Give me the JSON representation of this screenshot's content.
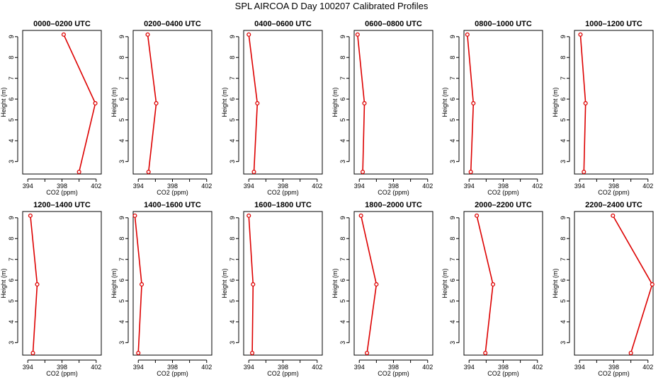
{
  "figure": {
    "title": "SPL AIRCOA D  Day 100207  Calibrated Profiles"
  },
  "colors": {
    "profile": "#dd0000",
    "axis": "#000000"
  },
  "chart_data": [
    {
      "type": "line",
      "title": "0000–0200 UTC",
      "xlabel": "CO2 (ppm)",
      "ylabel": "Height (m)",
      "xlim": [
        393.4,
        402.6
      ],
      "ylim": [
        2.4,
        9.3
      ],
      "xticks": [
        394,
        398,
        402
      ],
      "yticks": [
        3,
        4,
        5,
        6,
        7,
        8,
        9
      ],
      "series": [
        {
          "name": "profile",
          "x": [
            400.0,
            401.9,
            398.2
          ],
          "y": [
            2.5,
            5.8,
            9.1
          ]
        }
      ]
    },
    {
      "type": "line",
      "title": "0200–0400 UTC",
      "xlabel": "CO2 (ppm)",
      "ylabel": "Height (m)",
      "xlim": [
        393.4,
        402.6
      ],
      "ylim": [
        2.4,
        9.3
      ],
      "xticks": [
        394,
        398,
        402
      ],
      "yticks": [
        3,
        4,
        5,
        6,
        7,
        8,
        9
      ],
      "series": [
        {
          "name": "profile",
          "x": [
            395.2,
            396.1,
            395.1
          ],
          "y": [
            2.5,
            5.8,
            9.1
          ]
        }
      ]
    },
    {
      "type": "line",
      "title": "0400–0600 UTC",
      "xlabel": "CO2 (ppm)",
      "ylabel": "Height (m)",
      "xlim": [
        393.4,
        402.6
      ],
      "ylim": [
        2.4,
        9.3
      ],
      "xticks": [
        394,
        398,
        402
      ],
      "yticks": [
        3,
        4,
        5,
        6,
        7,
        8,
        9
      ],
      "series": [
        {
          "name": "profile",
          "x": [
            394.6,
            395.0,
            394.0
          ],
          "y": [
            2.5,
            5.8,
            9.1
          ]
        }
      ]
    },
    {
      "type": "line",
      "title": "0600–0800 UTC",
      "xlabel": "CO2 (ppm)",
      "ylabel": "Height (m)",
      "xlim": [
        393.4,
        402.6
      ],
      "ylim": [
        2.4,
        9.3
      ],
      "xticks": [
        394,
        398,
        402
      ],
      "yticks": [
        3,
        4,
        5,
        6,
        7,
        8,
        9
      ],
      "series": [
        {
          "name": "profile",
          "x": [
            394.4,
            394.6,
            393.8
          ],
          "y": [
            2.5,
            5.8,
            9.1
          ]
        }
      ]
    },
    {
      "type": "line",
      "title": "0800–1000 UTC",
      "xlabel": "CO2 (ppm)",
      "ylabel": "Height (m)",
      "xlim": [
        393.4,
        402.6
      ],
      "ylim": [
        2.4,
        9.3
      ],
      "xticks": [
        394,
        398,
        402
      ],
      "yticks": [
        3,
        4,
        5,
        6,
        7,
        8,
        9
      ],
      "series": [
        {
          "name": "profile",
          "x": [
            394.2,
            394.5,
            393.8
          ],
          "y": [
            2.5,
            5.8,
            9.1
          ]
        }
      ]
    },
    {
      "type": "line",
      "title": "1000–1200 UTC",
      "xlabel": "CO2 (ppm)",
      "ylabel": "Height (m)",
      "xlim": [
        393.4,
        402.6
      ],
      "ylim": [
        2.4,
        9.3
      ],
      "xticks": [
        394,
        398,
        402
      ],
      "yticks": [
        3,
        4,
        5,
        6,
        7,
        8,
        9
      ],
      "series": [
        {
          "name": "profile",
          "x": [
            394.5,
            394.7,
            394.1
          ],
          "y": [
            2.5,
            5.8,
            9.1
          ]
        }
      ]
    },
    {
      "type": "line",
      "title": "1200–1400 UTC",
      "xlabel": "CO2 (ppm)",
      "ylabel": "Height (m)",
      "xlim": [
        393.4,
        402.6
      ],
      "ylim": [
        2.4,
        9.3
      ],
      "xticks": [
        394,
        398,
        402
      ],
      "yticks": [
        3,
        4,
        5,
        6,
        7,
        8,
        9
      ],
      "series": [
        {
          "name": "profile",
          "x": [
            394.6,
            395.1,
            394.3
          ],
          "y": [
            2.5,
            5.8,
            9.1
          ]
        }
      ]
    },
    {
      "type": "line",
      "title": "1400–1600 UTC",
      "xlabel": "CO2 (ppm)",
      "ylabel": "Height (m)",
      "xlim": [
        393.4,
        402.6
      ],
      "ylim": [
        2.4,
        9.3
      ],
      "xticks": [
        394,
        398,
        402
      ],
      "yticks": [
        3,
        4,
        5,
        6,
        7,
        8,
        9
      ],
      "series": [
        {
          "name": "profile",
          "x": [
            394.0,
            394.4,
            393.6
          ],
          "y": [
            2.5,
            5.8,
            9.1
          ]
        }
      ]
    },
    {
      "type": "line",
      "title": "1600–1800 UTC",
      "xlabel": "CO2 (ppm)",
      "ylabel": "Height (m)",
      "xlim": [
        393.4,
        402.6
      ],
      "ylim": [
        2.4,
        9.3
      ],
      "xticks": [
        394,
        398,
        402
      ],
      "yticks": [
        3,
        4,
        5,
        6,
        7,
        8,
        9
      ],
      "series": [
        {
          "name": "profile",
          "x": [
            394.4,
            394.5,
            394.0
          ],
          "y": [
            2.5,
            5.8,
            9.1
          ]
        }
      ]
    },
    {
      "type": "line",
      "title": "1800–2000 UTC",
      "xlabel": "CO2 (ppm)",
      "ylabel": "Height (m)",
      "xlim": [
        393.4,
        402.6
      ],
      "ylim": [
        2.4,
        9.3
      ],
      "xticks": [
        394,
        398,
        402
      ],
      "yticks": [
        3,
        4,
        5,
        6,
        7,
        8,
        9
      ],
      "series": [
        {
          "name": "profile",
          "x": [
            394.9,
            396.0,
            394.2
          ],
          "y": [
            2.5,
            5.8,
            9.1
          ]
        }
      ]
    },
    {
      "type": "line",
      "title": "2000–2200 UTC",
      "xlabel": "CO2 (ppm)",
      "ylabel": "Height (m)",
      "xlim": [
        393.4,
        402.6
      ],
      "ylim": [
        2.4,
        9.3
      ],
      "xticks": [
        394,
        398,
        402
      ],
      "yticks": [
        3,
        4,
        5,
        6,
        7,
        8,
        9
      ],
      "series": [
        {
          "name": "profile",
          "x": [
            395.9,
            396.8,
            394.9
          ],
          "y": [
            2.5,
            5.8,
            9.1
          ]
        }
      ]
    },
    {
      "type": "line",
      "title": "2200–2400 UTC",
      "xlabel": "CO2 (ppm)",
      "ylabel": "Height (m)",
      "xlim": [
        393.4,
        402.6
      ],
      "ylim": [
        2.4,
        9.3
      ],
      "xticks": [
        394,
        398,
        402
      ],
      "yticks": [
        3,
        4,
        5,
        6,
        7,
        8,
        9
      ],
      "series": [
        {
          "name": "profile",
          "x": [
            400.0,
            402.5,
            397.9
          ],
          "y": [
            2.5,
            5.8,
            9.1
          ]
        }
      ]
    }
  ]
}
